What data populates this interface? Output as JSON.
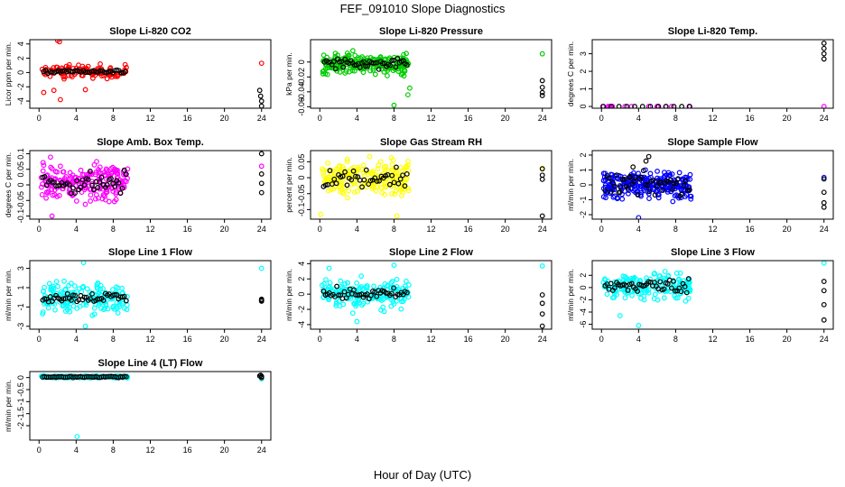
{
  "figure": {
    "title": "FEF_091010  Slope Diagnostics",
    "xlabel": "Hour of Day (UTC)"
  },
  "chart_data": [
    {
      "type": "scatter",
      "title": "Slope Li-820 CO2",
      "ylabel": "Licor ppm per min.",
      "color": "#ff0000",
      "xlim": [
        -1,
        25
      ],
      "ylim": [
        -5,
        4.6
      ],
      "xticks": [
        0,
        4,
        8,
        12,
        16,
        20,
        24
      ],
      "yticks": [
        -4,
        -2,
        0,
        2,
        4
      ],
      "cluster": {
        "x_start": 0.3,
        "x_end": 9.5,
        "center": 0.1,
        "spread": 0.6,
        "count": 110,
        "outliers": [
          [
            2.2,
            4.3
          ],
          [
            2.0,
            4.5
          ],
          [
            2.3,
            -3.8
          ],
          [
            0.5,
            -2.8
          ],
          [
            1.6,
            -2.5
          ],
          [
            5.0,
            -2.4
          ],
          [
            6.6,
            1.2
          ]
        ]
      },
      "late_points": [
        [
          24,
          1.3
        ]
      ],
      "black_cluster": {
        "center": 0.1,
        "spread": 0.15,
        "count": 40
      },
      "black_late": [
        [
          23.8,
          -2.5
        ],
        [
          23.9,
          -3.3
        ],
        [
          24,
          -4.0
        ],
        [
          24,
          -4.7
        ]
      ]
    },
    {
      "type": "scatter",
      "title": "Slope Li-820 Pressure",
      "ylabel": "kPa per min.",
      "color": "#00cc00",
      "xlim": [
        -1,
        25
      ],
      "ylim": [
        -0.062,
        0.03
      ],
      "xticks": [
        0,
        4,
        8,
        12,
        16,
        20,
        24
      ],
      "yticks": [
        -0.06,
        -0.04,
        -0.02,
        0
      ],
      "cluster": {
        "x_start": 0.3,
        "x_end": 9.6,
        "center": -0.002,
        "spread": 0.009,
        "count": 220,
        "outliers": [
          [
            8.0,
            -0.058
          ],
          [
            9.5,
            -0.044
          ],
          [
            9.7,
            -0.035
          ]
        ]
      },
      "late_points": [
        [
          24,
          0.011
        ]
      ],
      "black_cluster": {
        "center": -0.002,
        "spread": 0.005,
        "count": 45
      },
      "black_late": [
        [
          24,
          -0.025
        ],
        [
          24,
          -0.034
        ],
        [
          24,
          -0.041
        ],
        [
          24,
          -0.045
        ]
      ]
    },
    {
      "type": "scatter",
      "title": "Slope Li-820 Temp.",
      "ylabel": "degrees C per min.",
      "color": "#ff00ff",
      "xlim": [
        -1,
        25
      ],
      "ylim": [
        -0.1,
        3.8
      ],
      "xticks": [
        0,
        4,
        8,
        12,
        16,
        20,
        24
      ],
      "yticks": [
        0,
        1,
        2,
        3
      ],
      "cluster": {
        "x_start": 0.0,
        "x_end": 9.7,
        "center": 0.0,
        "spread": 0.0,
        "count": 16,
        "outliers": []
      },
      "late_points": [
        [
          24,
          0.0
        ]
      ],
      "black_cluster": {
        "center": 0.0,
        "spread": 0.0,
        "count": 12
      },
      "black_late": [
        [
          24,
          3.6
        ],
        [
          24,
          3.3
        ],
        [
          24,
          3.0
        ],
        [
          24,
          2.7
        ]
      ]
    },
    {
      "type": "scatter",
      "title": "Slope Amb. Box Temp.",
      "ylabel": "degrees C per min.",
      "color": "#ff00ff",
      "xlim": [
        -1,
        25
      ],
      "ylim": [
        -0.11,
        0.11
      ],
      "xticks": [
        0,
        4,
        8,
        12,
        16,
        20,
        24
      ],
      "yticks": [
        -0.1,
        -0.05,
        0,
        0.05,
        0.1
      ],
      "cluster": {
        "x_start": 0.2,
        "x_end": 9.6,
        "center": 0.005,
        "spread": 0.04,
        "count": 200,
        "outliers": [
          [
            1.4,
            -0.1
          ],
          [
            2.3,
            0.06
          ]
        ]
      },
      "late_points": [
        [
          24,
          0.06
        ]
      ],
      "black_cluster": {
        "center": 0.005,
        "spread": 0.025,
        "count": 45
      },
      "black_late": [
        [
          24,
          0.1
        ],
        [
          24,
          0.035
        ],
        [
          24,
          0.005
        ],
        [
          24,
          -0.025
        ]
      ]
    },
    {
      "type": "scatter",
      "title": "Slope Gas Stream RH",
      "ylabel": "percent per min.",
      "color": "#ffff00",
      "xlim": [
        -1,
        25
      ],
      "ylim": [
        -0.13,
        0.085
      ],
      "xticks": [
        0,
        4,
        8,
        12,
        16,
        20,
        24
      ],
      "yticks": [
        -0.1,
        -0.05,
        0,
        0.05
      ],
      "cluster": {
        "x_start": 0.2,
        "x_end": 9.6,
        "center": 0.0,
        "spread": 0.035,
        "count": 200,
        "outliers": [
          [
            0.1,
            -0.115
          ],
          [
            8.3,
            -0.12
          ]
        ]
      },
      "late_points": [
        [
          24,
          0.03
        ]
      ],
      "black_cluster": {
        "center": 0.0,
        "spread": 0.02,
        "count": 40
      },
      "black_late": [
        [
          24,
          0.028
        ],
        [
          24,
          0.008
        ],
        [
          24,
          -0.005
        ],
        [
          24,
          -0.12
        ]
      ]
    },
    {
      "type": "scatter",
      "title": "Slope Sample Flow",
      "ylabel": "ml/min per min.",
      "color": "#0000ff",
      "xlim": [
        -1,
        25
      ],
      "ylim": [
        -2.3,
        2.3
      ],
      "xticks": [
        0,
        4,
        8,
        12,
        16,
        20,
        24
      ],
      "yticks": [
        -2,
        -1,
        0,
        1,
        2
      ],
      "cluster": {
        "x_start": 0.2,
        "x_end": 9.7,
        "center": 0.0,
        "spread": 0.6,
        "count": 260,
        "outliers": [
          [
            4.0,
            -2.2
          ]
        ]
      },
      "late_points": [
        [
          24,
          0.5
        ]
      ],
      "black_cluster": {
        "center": 0.0,
        "spread": 0.5,
        "count": 45
      },
      "black_late": [
        [
          24,
          0.4
        ],
        [
          24,
          -0.5
        ],
        [
          24,
          -1.2
        ],
        [
          24,
          -1.5
        ],
        [
          4.8,
          1.6
        ],
        [
          5.1,
          1.9
        ],
        [
          3.4,
          1.2
        ],
        [
          3.0,
          0.5
        ],
        [
          2.0,
          -0.5
        ]
      ]
    },
    {
      "type": "scatter",
      "title": "Slope Line 1 Flow",
      "ylabel": "ml/min per min.",
      "color": "#00ffff",
      "xlim": [
        -1,
        25
      ],
      "ylim": [
        -3.3,
        3.8
      ],
      "xticks": [
        0,
        4,
        8,
        12,
        16,
        20,
        24
      ],
      "yticks": [
        -3,
        -1,
        1,
        3
      ],
      "cluster": {
        "x_start": 0.2,
        "x_end": 9.6,
        "center": 0.0,
        "spread": 1.0,
        "count": 170,
        "outliers": [
          [
            4.8,
            3.6
          ],
          [
            5.0,
            -3.0
          ]
        ]
      },
      "late_points": [
        [
          24,
          3.0
        ],
        [
          24,
          -0.3
        ]
      ],
      "black_cluster": {
        "center": 0.0,
        "spread": 0.35,
        "count": 45
      },
      "black_late": [
        [
          24,
          -0.2
        ],
        [
          24,
          -0.3
        ],
        [
          24,
          -0.4
        ]
      ]
    },
    {
      "type": "scatter",
      "title": "Slope Line 2 Flow",
      "ylabel": "ml/min per min.",
      "color": "#00ffff",
      "xlim": [
        -1,
        25
      ],
      "ylim": [
        -4.6,
        4.4
      ],
      "xticks": [
        0,
        4,
        8,
        12,
        16,
        20,
        24
      ],
      "yticks": [
        -4,
        -2,
        0,
        2,
        4
      ],
      "cluster": {
        "x_start": 0.2,
        "x_end": 9.6,
        "center": 0.0,
        "spread": 1.2,
        "count": 180,
        "outliers": [
          [
            4.0,
            -3.6
          ],
          [
            1.0,
            3.4
          ],
          [
            8.0,
            3.8
          ]
        ]
      },
      "late_points": [
        [
          24,
          3.7
        ]
      ],
      "black_cluster": {
        "center": 0.0,
        "spread": 0.5,
        "count": 45
      },
      "black_late": [
        [
          24,
          -0.1
        ],
        [
          24,
          -1.2
        ],
        [
          24,
          -2.6
        ],
        [
          24,
          -4.2
        ]
      ]
    },
    {
      "type": "scatter",
      "title": "Slope Line 3 Flow",
      "ylabel": "ml/min per min.",
      "color": "#00ffff",
      "xlim": [
        -1,
        25
      ],
      "ylim": [
        -6.8,
        4.4
      ],
      "xticks": [
        0,
        4,
        8,
        12,
        16,
        20,
        24
      ],
      "yticks": [
        -6,
        -4,
        -2,
        0,
        2
      ],
      "cluster": {
        "x_start": 0.2,
        "x_end": 9.6,
        "center": 0.3,
        "spread": 1.6,
        "count": 180,
        "outliers": [
          [
            4.0,
            -6.2
          ],
          [
            2.0,
            -4.6
          ]
        ]
      },
      "late_points": [
        [
          24,
          4.0
        ]
      ],
      "black_cluster": {
        "center": 0.3,
        "spread": 0.8,
        "count": 45
      },
      "black_late": [
        [
          24,
          1.0
        ],
        [
          24,
          -0.5
        ],
        [
          24,
          -2.8
        ],
        [
          24,
          -5.3
        ]
      ]
    },
    {
      "type": "scatter",
      "title": "Slope Line 4 (LT) Flow",
      "ylabel": "ml/min per min.",
      "color": "#00ffff",
      "xlim": [
        -1,
        25
      ],
      "ylim": [
        -2.6,
        0.25
      ],
      "xticks": [
        0,
        4,
        8,
        12,
        16,
        20,
        24
      ],
      "yticks": [
        -2,
        -1.5,
        -1,
        -0.5,
        0
      ],
      "cluster": {
        "x_start": 0.2,
        "x_end": 9.6,
        "center": 0.03,
        "spread": 0.03,
        "count": 170,
        "outliers": [
          [
            4.1,
            -2.45
          ]
        ]
      },
      "late_points": [
        [
          24,
          -0.05
        ]
      ],
      "black_cluster": {
        "center": 0.03,
        "spread": 0.02,
        "count": 45
      },
      "black_late": [
        [
          23.9,
          0.1
        ],
        [
          24,
          0.05
        ],
        [
          24,
          0.0
        ],
        [
          23.8,
          0.07
        ]
      ]
    }
  ]
}
